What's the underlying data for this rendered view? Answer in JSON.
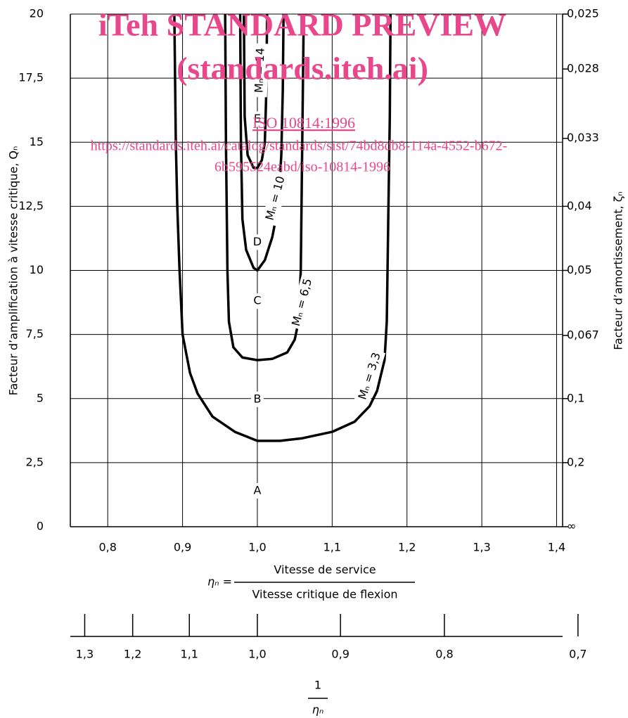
{
  "chart_data": {
    "type": "line",
    "y_label": "Facteur d’amplification à vitesse critique, Qₙ",
    "y2_label": "Facteur d’amortissement, ζₙ",
    "x_label_symbol": "ηₙ =",
    "x_label_numerator": "Vitesse de service",
    "x_label_denominator": "Vitesse critique de flexion",
    "x2_label_numerator": "1",
    "x2_label_denominator": "ηₙ",
    "xlim": [
      0.75,
      1.408
    ],
    "xticks": [
      {
        "value": 0.8,
        "label": "0,8"
      },
      {
        "value": 0.9,
        "label": "0,9"
      },
      {
        "value": 1.0,
        "label": "1,0"
      },
      {
        "value": 1.1,
        "label": "1,1"
      },
      {
        "value": 1.2,
        "label": "1,2"
      },
      {
        "value": 1.3,
        "label": "1,3"
      },
      {
        "value": 1.4,
        "label": "1,4"
      }
    ],
    "ylim": [
      0,
      20
    ],
    "yticks": [
      0,
      {
        "value": 2.5,
        "label": "2,5"
      },
      5,
      {
        "value": 7.5,
        "label": "7,5"
      },
      10,
      {
        "value": 12.5,
        "label": "12,5"
      },
      15,
      {
        "value": 17.5,
        "label": "17,5"
      },
      20
    ],
    "y2scale": "reciprocal",
    "y2ticks": [
      {
        "value": 0.025,
        "label": "0,025"
      },
      {
        "value": 0.028,
        "label": "0,028"
      },
      {
        "value": 0.033,
        "label": "0,033"
      },
      {
        "value": 0.04,
        "label": "0,04"
      },
      {
        "value": 0.05,
        "label": "0,05"
      },
      {
        "value": 0.067,
        "label": "0,067"
      },
      {
        "value": 0.1,
        "label": "0,1"
      },
      {
        "value": 0.2,
        "label": "0,2"
      },
      {
        "value": null,
        "label": "∞"
      }
    ],
    "x2scale": "reciprocal",
    "x2ticks": [
      {
        "value": 1.3,
        "label": "1,3"
      },
      {
        "value": 1.2,
        "label": "1,2"
      },
      {
        "value": 1.1,
        "label": "1,1"
      },
      {
        "value": 1.0,
        "label": "1,0"
      },
      {
        "value": 0.9,
        "label": "0,9"
      },
      {
        "value": 0.8,
        "label": "0,8"
      },
      {
        "value": 0.7,
        "label": "0,7"
      }
    ],
    "grid": true,
    "regions": [
      "A",
      "B",
      "C",
      "D",
      "E"
    ],
    "series": [
      {
        "name": "Mₙ = 3,3",
        "color": "#000000",
        "x": [
          0.889,
          0.891,
          0.893,
          0.896,
          0.9,
          0.91,
          0.92,
          0.94,
          0.97,
          1.0,
          1.03,
          1.06,
          1.1,
          1.13,
          1.15,
          1.16,
          1.17,
          1.173,
          1.175,
          1.177,
          1.178
        ],
        "values": [
          20,
          15,
          12.5,
          10,
          7.5,
          6,
          5.2,
          4.3,
          3.7,
          3.35,
          3.35,
          3.45,
          3.7,
          4.1,
          4.7,
          5.3,
          6.5,
          8,
          12,
          16,
          20
        ]
      },
      {
        "name": "Mₙ = 6,5",
        "color": "#000000",
        "x": [
          0.957,
          0.958,
          0.96,
          0.962,
          0.968,
          0.98,
          1.0,
          1.02,
          1.04,
          1.05,
          1.055,
          1.058,
          1.06,
          1.062
        ],
        "values": [
          20,
          15,
          10,
          8,
          7,
          6.6,
          6.5,
          6.55,
          6.8,
          7.3,
          8,
          10,
          15,
          20
        ]
      },
      {
        "name": "Mₙ = 10",
        "color": "#000000",
        "x": [
          0.977,
          0.978,
          0.98,
          0.985,
          0.995,
          1.0,
          1.01,
          1.02,
          1.028,
          1.032,
          1.034,
          1.035
        ],
        "values": [
          20,
          15,
          12,
          10.8,
          10.1,
          10,
          10.4,
          11.3,
          12.5,
          14.5,
          17,
          20
        ]
      },
      {
        "name": "Mₙ = 14",
        "color": "#000000",
        "x": [
          0.982,
          0.983,
          0.987,
          0.995,
          1.0,
          1.006,
          1.01,
          1.012,
          1.013
        ],
        "values": [
          20,
          16,
          14.5,
          14,
          14,
          14.3,
          15,
          17,
          20
        ]
      }
    ]
  },
  "watermark": {
    "title": "iTeh STANDARD PREVIEW",
    "subtitle": "(standards.iteh.ai)",
    "standard": "ISO 10814:1996",
    "url_line1": "https://standards.iteh.ai/catalog/standards/sist/74bd8db8-114a-4552-b672-",
    "url_line2": "6b595524eabd/iso-10814-1996"
  }
}
